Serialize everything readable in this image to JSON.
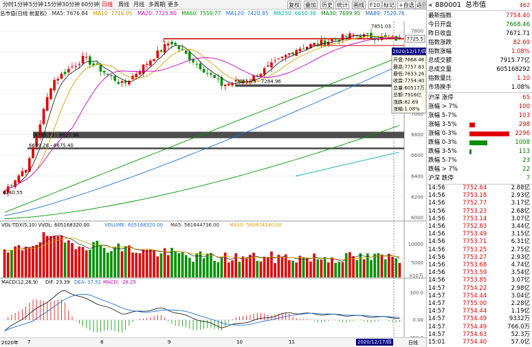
{
  "toolbar": {
    "items": [
      "分时",
      "1分钟",
      "5分钟",
      "15分钟",
      "30分钟",
      "60分钟",
      "日线",
      "周线",
      "月线",
      "多周期",
      "更多"
    ],
    "right_items": [
      "复权",
      "叠加",
      "历史",
      "统计",
      "画线",
      "F10",
      "标记",
      "+自选"
    ],
    "back": "返回"
  },
  "kline_info": {
    "title": "总市值(日线 前复权)",
    "ma5": "MA5: 7676.84",
    "ma10": "MA10: 7716.05",
    "ma20": "MA20: 7725.80",
    "ma60": "MA60: 7559.77",
    "ma120": "MA120: 7420.85",
    "ma250": "MA250: 6650.36",
    "ma30": "MA30: 7699.95",
    "ma89": "MA89: 7520.76"
  },
  "colors": {
    "ma5": "#222222",
    "ma10": "#d9a000",
    "ma20": "#c000c0",
    "ma60": "#009900",
    "ma120": "#1e6fd9",
    "ma250": "#00aeb0",
    "ma30": "#0a7a0a",
    "ma89": "#1565c0",
    "up": "#e00000",
    "down": "#009000"
  },
  "price_axis": {
    "labels": [
      "7800",
      "7725.5",
      "7600",
      "7400",
      "7200",
      "7000",
      "6800",
      "6600",
      "6400",
      "6200",
      "6000"
    ],
    "current_price": "7725.5"
  },
  "annotations": {
    "high_label": "7851.03",
    "low_label": "6240.55",
    "gap1": "6765.73 - 6827.98",
    "gap2": "6659.28 - 6675.40",
    "gap3": "7261.73 - 7284.96"
  },
  "cursor_tooltip": {
    "date": "2020/12/17/四",
    "lines": [
      "开盘:7668.46",
      "最高:7757.83",
      "最低:7633.26",
      "收盘:7754.40",
      "总量:60517万",
      "总额:7916亿",
      "涨跌:82.69",
      "涨幅:1.08%"
    ]
  },
  "volume": {
    "info": "VOL-TDX(5,10) VVOL: 605168320.00",
    "volume": "VOLUME: 605168320.00",
    "ma5": "MA5: 561644736.00",
    "ma10": "MA10: 560874240.00",
    "axis_labels": [
      "10000",
      "5000"
    ],
    "unit": "X10万"
  },
  "macd": {
    "info": "MACD(12,26,9)",
    "dif": "DIF: 23.39",
    "dea": "DEA: 37.52",
    "macd": "MACD: -28.25",
    "axis_labels": [
      "300.0",
      "0.00",
      "-200.0"
    ]
  },
  "xaxis": {
    "labels": [
      "2020年",
      "7",
      "8",
      "9",
      "10",
      "11"
    ],
    "cursor_date": "2020/12/17/四",
    "end": "日线"
  },
  "panel": {
    "code": "880001",
    "name": "总市值",
    "badge": "$62",
    "stats": [
      {
        "label": "最新指数",
        "value": "7754.40",
        "color": "red"
      },
      {
        "label": "今日开盘",
        "value": "7668.46",
        "color": "green"
      },
      {
        "label": "昨日收盘",
        "value": "7671.71",
        "color": "black"
      },
      {
        "label": "指数涨跌",
        "value": "82.69",
        "color": "red"
      },
      {
        "label": "指数涨幅",
        "value": "1.08%",
        "color": "red"
      },
      {
        "label": "总成交额",
        "value": "7915.77亿",
        "color": "black"
      },
      {
        "label": "总成交量",
        "value": "605168292",
        "color": "black"
      },
      {
        "label": "指数量比",
        "value": "1.10",
        "color": "red"
      },
      {
        "label": "市场换手",
        "value": "1.08%",
        "color": "black"
      }
    ],
    "distribution": [
      {
        "label": "沪深 涨停",
        "value": "65",
        "color": "red",
        "bar": 0
      },
      {
        "label": "涨幅 > 7%",
        "value": "100",
        "color": "red",
        "bar": 0
      },
      {
        "label": "涨幅 5-7%",
        "value": "103",
        "color": "red",
        "bar": 0
      },
      {
        "label": "涨幅 3-5%",
        "value": "298",
        "color": "red",
        "bar": 0.13
      },
      {
        "label": "涨幅 0-3%",
        "value": "2296",
        "color": "red",
        "bar": 1.0
      },
      {
        "label": "跌幅 0-3%",
        "value": "1008",
        "color": "green",
        "bar": 0.44
      },
      {
        "label": "跌幅 3-5%",
        "value": "113",
        "color": "green",
        "bar": 0.05
      },
      {
        "label": "跌幅 5-7%",
        "value": "23",
        "color": "green",
        "bar": 0
      },
      {
        "label": "跌幅 > 7%",
        "value": "22",
        "color": "green",
        "bar": 0
      },
      {
        "label": "沪深 跌停",
        "value": "7",
        "color": "green",
        "bar": 0
      }
    ],
    "ticks": [
      {
        "time": "14:56",
        "price": "7752.64",
        "vol": "2.88亿"
      },
      {
        "time": "14:56",
        "price": "7753.18",
        "vol": "2.93亿"
      },
      {
        "time": "14:56",
        "price": "7752.77",
        "vol": "3.17亿"
      },
      {
        "time": "14:56",
        "price": "7753.23",
        "vol": "2.68亿"
      },
      {
        "time": "14:56",
        "price": "7753.14",
        "vol": "3.07亿"
      },
      {
        "time": "14:56",
        "price": "7752.83",
        "vol": "3.44亿"
      },
      {
        "time": "14:56",
        "price": "7753.49",
        "vol": "3.15亿"
      },
      {
        "time": "14:56",
        "price": "7753.71",
        "vol": "6.31亿"
      },
      {
        "time": "14:56",
        "price": "7753.25",
        "vol": "2.75亿"
      },
      {
        "time": "14:56",
        "price": "7753.27",
        "vol": "2.93亿"
      },
      {
        "time": "14:56",
        "price": "7753.68",
        "vol": "4.74亿"
      },
      {
        "time": "14:56",
        "price": "7753.59",
        "vol": "3.54亿"
      },
      {
        "time": "14:56",
        "price": "7753.85",
        "vol": "3.07亿"
      },
      {
        "time": "14:57",
        "price": "7754.22",
        "vol": "2.98亿"
      },
      {
        "time": "14:57",
        "price": "7754.44",
        "vol": "3.04亿"
      },
      {
        "time": "14:57",
        "price": "7755.00",
        "vol": "2.28亿"
      },
      {
        "time": "14:57",
        "price": "7754.44",
        "vol": "1.19亿"
      },
      {
        "time": "14:57",
        "price": "7754.49",
        "vol": "9332万"
      },
      {
        "time": "14:57",
        "price": "7754.49",
        "vol": "766.0万"
      },
      {
        "time": "14:57",
        "price": "7754.63",
        "vol": "52.3万"
      },
      {
        "time": "15:01",
        "price": "7754.40",
        "vol": "57.0亿"
      }
    ]
  }
}
